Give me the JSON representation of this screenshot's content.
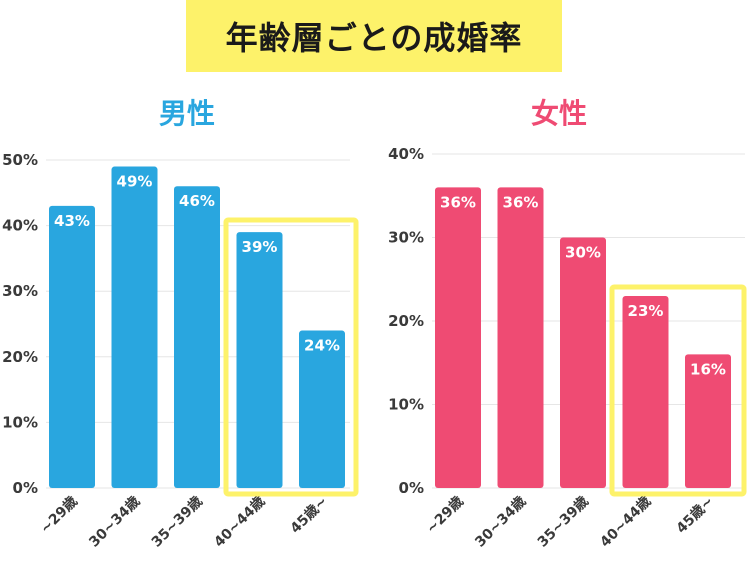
{
  "title": "年齢層ごとの成婚率",
  "colors": {
    "male": "#29a6df",
    "female": "#ef4b73",
    "highlight": "#fdf26a",
    "grid": "#e6e6e6"
  },
  "chart_data": [
    {
      "type": "bar",
      "title": "男性",
      "categories": [
        "~29歳",
        "30~34歳",
        "35~39歳",
        "40~44歳",
        "45歳~"
      ],
      "values": [
        43,
        49,
        46,
        39,
        24
      ],
      "value_labels": [
        "43%",
        "49%",
        "46%",
        "39%",
        "24%"
      ],
      "ylim": [
        0,
        50
      ],
      "yticks": [
        "0%",
        "10%",
        "20%",
        "30%",
        "40%",
        "50%"
      ],
      "grid": true,
      "highlighted_categories": [
        "40~44歳",
        "45歳~"
      ]
    },
    {
      "type": "bar",
      "title": "女性",
      "categories": [
        "~29歳",
        "30~34歳",
        "35~39歳",
        "40~44歳",
        "45歳~"
      ],
      "values": [
        36,
        36,
        30,
        23,
        16
      ],
      "value_labels": [
        "36%",
        "36%",
        "30%",
        "23%",
        "16%"
      ],
      "ylim": [
        0,
        40
      ],
      "yticks": [
        "0%",
        "10%",
        "20%",
        "30%",
        "40%"
      ],
      "grid": true,
      "highlighted_categories": [
        "40~44歳",
        "45歳~"
      ]
    }
  ]
}
